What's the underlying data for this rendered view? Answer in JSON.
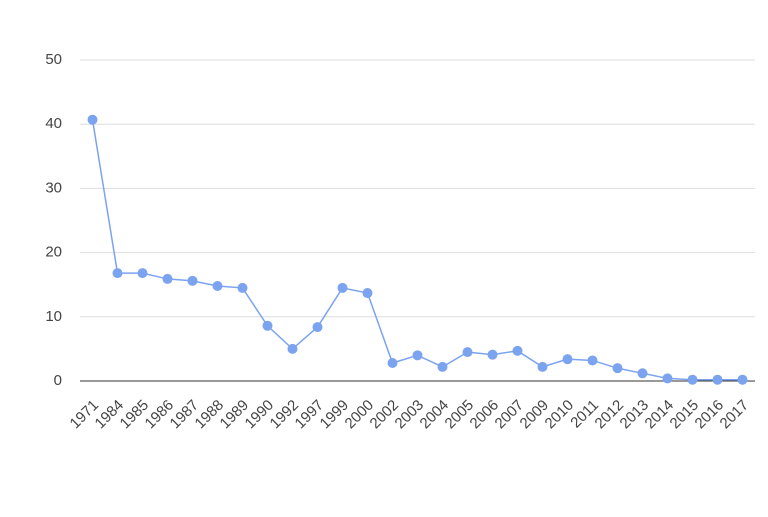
{
  "chart_data": {
    "type": "line",
    "categories": [
      "1971",
      "1984",
      "1985",
      "1986",
      "1987",
      "1988",
      "1989",
      "1990",
      "1992",
      "1997",
      "1999",
      "2000",
      "2002",
      "2003",
      "2004",
      "2005",
      "2006",
      "2007",
      "2009",
      "2010",
      "2011",
      "2012",
      "2013",
      "2014",
      "2015",
      "2016",
      "2017"
    ],
    "values": [
      40.7,
      16.8,
      16.8,
      15.9,
      15.6,
      14.8,
      14.5,
      8.6,
      5.0,
      8.4,
      14.5,
      13.7,
      2.8,
      4.0,
      2.2,
      4.5,
      4.1,
      4.7,
      2.2,
      3.4,
      3.2,
      2.0,
      1.2,
      0.4,
      0.2,
      0.2,
      0.2
    ],
    "color": "#7ba3ef",
    "ylim": [
      0,
      50
    ],
    "yticks": [
      0,
      10,
      20,
      30,
      40,
      50
    ],
    "grid": true
  }
}
